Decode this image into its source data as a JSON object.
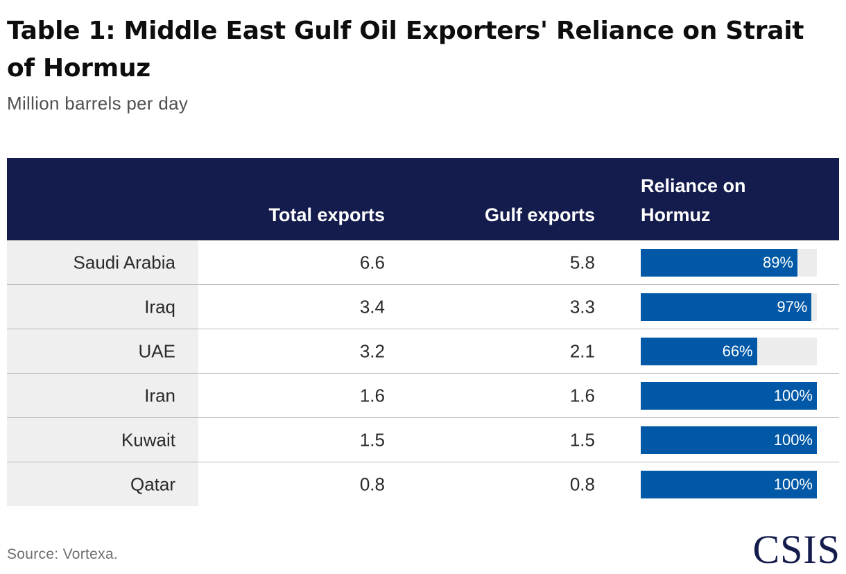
{
  "title": "Table 1: Middle East Gulf Oil Exporters' Reliance on Strait of Hormuz",
  "subtitle": "Million barrels per day",
  "colors": {
    "header_bg": "#141c4d",
    "bar_fill": "#0058a6",
    "bar_track": "#ececec",
    "country_cell_bg": "#efefef"
  },
  "chart_data": {
    "type": "table",
    "columns": [
      "",
      "Total exports",
      "Gulf exports",
      "Reliance on Hormuz"
    ],
    "rows": [
      {
        "country": "Saudi Arabia",
        "total": "6.6",
        "gulf": "5.8",
        "reliance": 0.89,
        "reliance_label": "89%"
      },
      {
        "country": "Iraq",
        "total": "3.4",
        "gulf": "3.3",
        "reliance": 0.97,
        "reliance_label": "97%"
      },
      {
        "country": "UAE",
        "total": "3.2",
        "gulf": "2.1",
        "reliance": 0.66,
        "reliance_label": "66%"
      },
      {
        "country": "Iran",
        "total": "1.6",
        "gulf": "1.6",
        "reliance": 1.0,
        "reliance_label": "100%"
      },
      {
        "country": "Kuwait",
        "total": "1.5",
        "gulf": "1.5",
        "reliance": 1.0,
        "reliance_label": "100%"
      },
      {
        "country": "Qatar",
        "total": "0.8",
        "gulf": "0.8",
        "reliance": 1.0,
        "reliance_label": "100%"
      }
    ]
  },
  "source": "Source: Vortexa.",
  "logo": "CSIS"
}
